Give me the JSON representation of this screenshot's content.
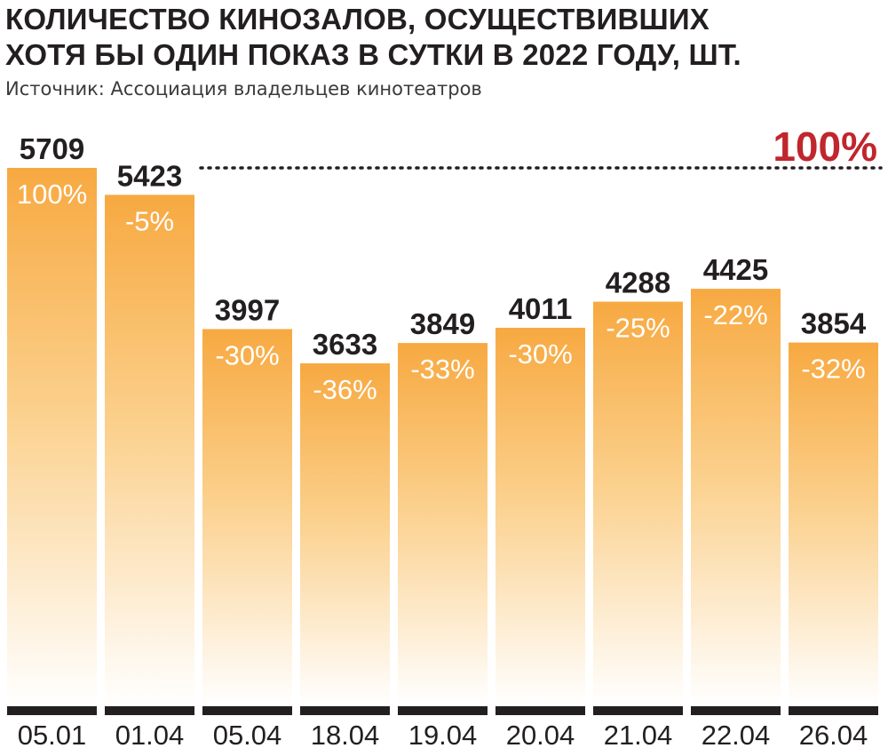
{
  "title_lines": [
    "КОЛИЧЕСТВО КИНОЗАЛОВ, ОСУЩЕСТВИВШИХ",
    "ХОТЯ БЫ ОДИН ПОКАЗ В СУТКИ В 2022 ГОДУ, ШТ."
  ],
  "source": "Источник: Ассоциация владельцев кинотеатров",
  "chart_data": {
    "type": "bar",
    "title": "КОЛИЧЕСТВО КИНОЗАЛОВ, ОСУЩЕСТВИВШИХ ХОТЯ БЫ ОДИН ПОКАЗ В СУТКИ В 2022 ГОДУ, ШТ.",
    "categories": [
      "05.01",
      "01.04",
      "05.04",
      "18.04",
      "19.04",
      "20.04",
      "21.04",
      "22.04",
      "26.04"
    ],
    "values": [
      5709,
      5423,
      3997,
      3633,
      3849,
      4011,
      4288,
      4425,
      3854
    ],
    "percent_labels": [
      "100%",
      "-5%",
      "-30%",
      "-36%",
      "-33%",
      "-30%",
      "-25%",
      "-22%",
      "-32%"
    ],
    "reference_line": {
      "value": 5709,
      "label": "100%",
      "style": "dotted"
    },
    "ylim": [
      0,
      5709
    ],
    "grid": false,
    "legend": "none",
    "colors": {
      "bar_top": "#f7a941",
      "bar_bottom": "#ffffff",
      "reference_label": "#c0262d",
      "text": "#231f20",
      "axis": "#231f20"
    }
  }
}
